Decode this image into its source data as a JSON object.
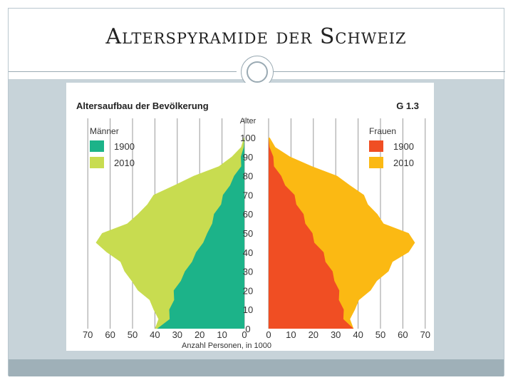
{
  "slide": {
    "title": "Alterspyramide der Schweiz"
  },
  "chart_data": {
    "type": "population-pyramid",
    "title": "Altersaufbau der Bevölkerung",
    "chart_id": "G 1.3",
    "y_axis_label": "Alter",
    "x_axis_label": "Anzahl Personen, in 1000",
    "age_ticks": [
      0,
      10,
      20,
      30,
      40,
      50,
      60,
      70,
      80,
      90,
      100
    ],
    "x_ticks_left": [
      70,
      60,
      50,
      40,
      30,
      20,
      10,
      0
    ],
    "x_ticks_right": [
      0,
      10,
      20,
      30,
      40,
      50,
      60,
      70
    ],
    "xlim": [
      0,
      70
    ],
    "ylim": [
      0,
      105
    ],
    "legend_left": {
      "heading": "Männer",
      "entries": [
        "1900",
        "2010"
      ]
    },
    "legend_right": {
      "heading": "Frauen",
      "entries": [
        "1900",
        "2010"
      ]
    },
    "ages": [
      0,
      5,
      10,
      15,
      20,
      25,
      30,
      35,
      40,
      45,
      50,
      55,
      60,
      65,
      70,
      75,
      80,
      85,
      90,
      95,
      100
    ],
    "series": [
      {
        "name": "1900",
        "side": "Männer",
        "color": "#1cb389",
        "values": [
          39,
          34,
          33,
          32,
          31,
          29,
          26,
          24,
          21,
          19,
          16,
          15,
          13,
          11,
          9,
          7,
          4,
          2,
          1,
          0.3,
          0
        ]
      },
      {
        "name": "2010",
        "side": "Männer",
        "color": "#c8dc50",
        "values": [
          40,
          39,
          40,
          43,
          47,
          51,
          53,
          56,
          61,
          67,
          63,
          53,
          47,
          44,
          40,
          32,
          22,
          12,
          5,
          1.5,
          0.2
        ]
      },
      {
        "name": "1900",
        "side": "Frauen",
        "color": "#f04e23",
        "values": [
          38,
          34,
          33,
          32,
          31,
          30,
          28,
          26,
          24,
          21,
          19,
          17,
          15,
          13,
          11,
          8,
          5,
          3,
          1.5,
          0.4,
          0
        ]
      },
      {
        "name": "2010",
        "side": "Frauen",
        "color": "#fbb913",
        "values": [
          38,
          37,
          38,
          41,
          45,
          49,
          53,
          56,
          62,
          66,
          62,
          52,
          48,
          45,
          42,
          37,
          30,
          20,
          9,
          3,
          0.5
        ]
      }
    ]
  }
}
